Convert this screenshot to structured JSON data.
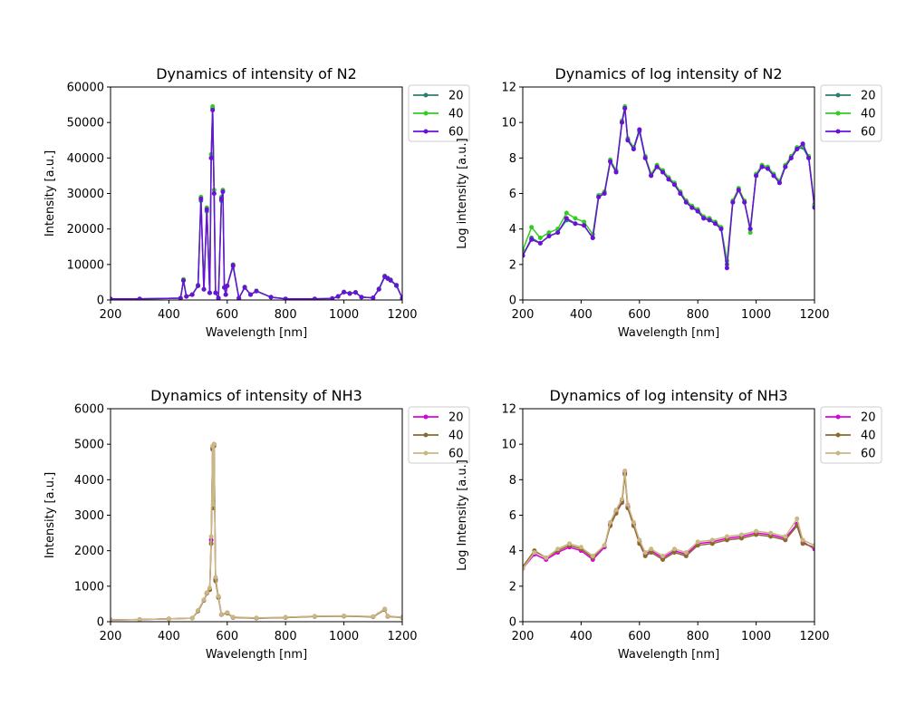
{
  "chart_data": [
    {
      "type": "line",
      "title": "Dynamics of intensity of N2",
      "xlabel": "Wavelength [nm]",
      "ylabel": "Intensity [a.u.]",
      "xlim": [
        200,
        1200
      ],
      "ylim": [
        0,
        60000
      ],
      "xticks": [
        "200",
        "400",
        "600",
        "800",
        "1000",
        "1200"
      ],
      "yticks": [
        "0",
        "10000",
        "20000",
        "30000",
        "40000",
        "50000",
        "60000"
      ],
      "legend_position": "outside-right",
      "marker": "dot",
      "series": [
        {
          "name": "20",
          "color": "#2a7f6e",
          "x": [
            200,
            300,
            440,
            450,
            460,
            480,
            500,
            510,
            520,
            530,
            540,
            545,
            550,
            555,
            560,
            570,
            580,
            585,
            590,
            595,
            600,
            620,
            640,
            660,
            680,
            700,
            750,
            800,
            900,
            960,
            980,
            1000,
            1020,
            1040,
            1060,
            1100,
            1120,
            1140,
            1150,
            1160,
            1180,
            1200
          ],
          "y": [
            300,
            300,
            500,
            5500,
            1000,
            1500,
            4000,
            28000,
            3000,
            25000,
            2000,
            40000,
            54000,
            30000,
            2000,
            500,
            28000,
            30500,
            3500,
            1500,
            4000,
            9500,
            500,
            3500,
            1500,
            2500,
            800,
            300,
            300,
            400,
            1000,
            2200,
            1800,
            2100,
            800,
            600,
            3000,
            6500,
            6000,
            5500,
            4000,
            500
          ]
        },
        {
          "name": "40",
          "color": "#33cc22",
          "x": [
            200,
            300,
            440,
            450,
            460,
            480,
            500,
            510,
            520,
            530,
            540,
            545,
            550,
            555,
            560,
            570,
            580,
            585,
            590,
            595,
            600,
            620,
            640,
            660,
            680,
            700,
            750,
            800,
            900,
            960,
            980,
            1000,
            1020,
            1040,
            1060,
            1100,
            1120,
            1140,
            1150,
            1160,
            1180,
            1200
          ],
          "y": [
            300,
            300,
            500,
            5800,
            1000,
            1500,
            4200,
            29000,
            3000,
            26000,
            2000,
            41000,
            54500,
            31000,
            2000,
            500,
            29000,
            31000,
            3500,
            1500,
            4000,
            10000,
            500,
            3700,
            1500,
            2600,
            800,
            300,
            300,
            400,
            1000,
            2300,
            1900,
            2200,
            800,
            600,
            3200,
            6800,
            6200,
            5700,
            4200,
            500
          ]
        },
        {
          "name": "60",
          "color": "#6a0fdc",
          "x": [
            200,
            300,
            440,
            450,
            460,
            480,
            500,
            510,
            520,
            530,
            540,
            545,
            550,
            555,
            560,
            570,
            580,
            585,
            590,
            595,
            600,
            620,
            640,
            660,
            680,
            700,
            750,
            800,
            900,
            960,
            980,
            1000,
            1020,
            1040,
            1060,
            1100,
            1120,
            1140,
            1150,
            1160,
            1180,
            1200
          ],
          "y": [
            300,
            300,
            500,
            5500,
            1000,
            1500,
            4000,
            28500,
            3000,
            25500,
            2000,
            40000,
            53500,
            30000,
            2000,
            500,
            28500,
            30500,
            3500,
            1500,
            4000,
            9800,
            500,
            3500,
            1500,
            2500,
            800,
            300,
            300,
            400,
            1000,
            2200,
            1800,
            2100,
            800,
            600,
            3000,
            6600,
            6100,
            5600,
            4100,
            500
          ]
        }
      ]
    },
    {
      "type": "line",
      "title": "Dynamics of log intensity of N2",
      "xlabel": "Wavelength [nm]",
      "ylabel": "Log intensity [a.u.]",
      "xlim": [
        200,
        1200
      ],
      "ylim": [
        0,
        12
      ],
      "xticks": [
        "200",
        "400",
        "600",
        "800",
        "1000",
        "1200"
      ],
      "yticks": [
        "0",
        "2",
        "4",
        "6",
        "8",
        "10",
        "12"
      ],
      "legend_position": "outside-right",
      "marker": "dot",
      "series": [
        {
          "name": "20",
          "color": "#2a7f6e",
          "x": [
            200,
            230,
            260,
            290,
            320,
            350,
            380,
            410,
            440,
            460,
            480,
            500,
            520,
            540,
            550,
            560,
            580,
            600,
            620,
            640,
            660,
            680,
            700,
            720,
            740,
            760,
            780,
            800,
            820,
            840,
            860,
            880,
            900,
            920,
            940,
            960,
            980,
            1000,
            1020,
            1040,
            1060,
            1080,
            1100,
            1120,
            1140,
            1160,
            1180,
            1200
          ],
          "y": [
            2.5,
            3.5,
            3.2,
            3.6,
            3.8,
            4.5,
            4.3,
            4.2,
            3.5,
            5.8,
            6.0,
            7.8,
            7.2,
            10.0,
            10.8,
            9.0,
            8.5,
            9.5,
            8.0,
            7.0,
            7.5,
            7.2,
            6.8,
            6.5,
            6.0,
            5.5,
            5.2,
            5.0,
            4.6,
            4.5,
            4.3,
            4.0,
            2.0,
            5.5,
            6.2,
            5.5,
            4.0,
            7.0,
            7.5,
            7.4,
            7.0,
            6.6,
            7.5,
            8.0,
            8.5,
            8.6,
            8.0,
            5.3
          ]
        },
        {
          "name": "40",
          "color": "#33cc22",
          "x": [
            200,
            230,
            260,
            290,
            320,
            350,
            380,
            410,
            440,
            460,
            480,
            500,
            520,
            540,
            550,
            560,
            580,
            600,
            620,
            640,
            660,
            680,
            700,
            720,
            740,
            760,
            780,
            800,
            820,
            840,
            860,
            880,
            900,
            920,
            940,
            960,
            980,
            1000,
            1020,
            1040,
            1060,
            1080,
            1100,
            1120,
            1140,
            1160,
            1180,
            1200
          ],
          "y": [
            2.8,
            4.1,
            3.5,
            3.8,
            4.0,
            4.9,
            4.6,
            4.4,
            3.7,
            5.9,
            6.1,
            7.9,
            7.3,
            10.1,
            10.9,
            9.1,
            8.6,
            9.6,
            8.1,
            7.1,
            7.6,
            7.3,
            6.9,
            6.6,
            6.1,
            5.6,
            5.3,
            5.1,
            4.7,
            4.6,
            4.4,
            4.1,
            2.2,
            5.6,
            6.3,
            5.6,
            3.8,
            7.1,
            7.6,
            7.5,
            7.1,
            6.7,
            7.6,
            8.1,
            8.6,
            8.7,
            8.1,
            5.4
          ]
        },
        {
          "name": "60",
          "color": "#6a0fdc",
          "x": [
            200,
            230,
            260,
            290,
            320,
            350,
            380,
            410,
            440,
            460,
            480,
            500,
            520,
            540,
            550,
            560,
            580,
            600,
            620,
            640,
            660,
            680,
            700,
            720,
            740,
            760,
            780,
            800,
            820,
            840,
            860,
            880,
            900,
            920,
            940,
            960,
            980,
            1000,
            1020,
            1040,
            1060,
            1080,
            1100,
            1120,
            1140,
            1160,
            1180,
            1200
          ],
          "y": [
            2.5,
            3.4,
            3.2,
            3.6,
            3.8,
            4.6,
            4.3,
            4.2,
            3.5,
            5.8,
            6.0,
            7.8,
            7.2,
            10.0,
            10.8,
            9.0,
            8.5,
            9.6,
            8.0,
            7.0,
            7.5,
            7.2,
            6.8,
            6.5,
            6.0,
            5.5,
            5.2,
            5.0,
            4.6,
            4.5,
            4.3,
            4.0,
            1.8,
            5.5,
            6.2,
            5.5,
            4.0,
            7.0,
            7.5,
            7.4,
            7.0,
            6.6,
            7.5,
            8.0,
            8.5,
            8.8,
            8.0,
            5.2
          ]
        }
      ]
    },
    {
      "type": "line",
      "title": "Dynamics of intensity of NH3",
      "xlabel": "Wavelength [nm]",
      "ylabel": "Intensity [a.u.]",
      "xlim": [
        200,
        1200
      ],
      "ylim": [
        0,
        6000
      ],
      "xticks": [
        "200",
        "400",
        "600",
        "800",
        "1000",
        "1200"
      ],
      "yticks": [
        "0",
        "1000",
        "2000",
        "3000",
        "4000",
        "5000",
        "6000"
      ],
      "legend_position": "outside-right",
      "marker": "dot",
      "series": [
        {
          "name": "20",
          "color": "#dd00dd",
          "x": [
            200,
            300,
            400,
            480,
            500,
            520,
            530,
            540,
            545,
            550,
            552,
            555,
            560,
            570,
            580,
            600,
            620,
            700,
            800,
            900,
            1000,
            1100,
            1140,
            1150,
            1200
          ],
          "y": [
            50,
            60,
            80,
            100,
            300,
            600,
            800,
            900,
            2300,
            4900,
            3400,
            5000,
            1200,
            700,
            200,
            250,
            120,
            100,
            120,
            150,
            160,
            140,
            350,
            150,
            120
          ]
        },
        {
          "name": "40",
          "color": "#8b6a2e",
          "x": [
            200,
            300,
            400,
            480,
            500,
            520,
            530,
            540,
            545,
            550,
            552,
            555,
            560,
            570,
            580,
            600,
            620,
            700,
            800,
            900,
            1000,
            1100,
            1140,
            1150,
            1200
          ],
          "y": [
            50,
            60,
            80,
            100,
            300,
            600,
            800,
            900,
            2200,
            4850,
            3200,
            4950,
            1150,
            680,
            200,
            240,
            120,
            100,
            115,
            145,
            155,
            135,
            340,
            150,
            115
          ]
        },
        {
          "name": "60",
          "color": "#c8b882",
          "x": [
            200,
            300,
            400,
            480,
            500,
            520,
            530,
            540,
            545,
            550,
            552,
            555,
            560,
            570,
            580,
            600,
            620,
            700,
            800,
            900,
            1000,
            1100,
            1140,
            1150,
            1200
          ],
          "y": [
            50,
            60,
            80,
            100,
            320,
            620,
            820,
            950,
            2400,
            4950,
            3300,
            5000,
            1250,
            720,
            210,
            260,
            130,
            110,
            125,
            155,
            165,
            145,
            360,
            160,
            125
          ]
        }
      ]
    },
    {
      "type": "line",
      "title": "Dynamics of log intensity of NH3",
      "xlabel": "Wavelength [nm]",
      "ylabel": "Log Intensity [a.u.]",
      "xlim": [
        200,
        1200
      ],
      "ylim": [
        0,
        12
      ],
      "xticks": [
        "200",
        "400",
        "600",
        "800",
        "1000",
        "1200"
      ],
      "yticks": [
        "0",
        "2",
        "4",
        "6",
        "8",
        "10",
        "12"
      ],
      "legend_position": "outside-right",
      "marker": "dot",
      "series": [
        {
          "name": "20",
          "color": "#dd00dd",
          "x": [
            200,
            240,
            280,
            320,
            360,
            400,
            440,
            480,
            500,
            520,
            540,
            550,
            560,
            580,
            600,
            620,
            640,
            680,
            720,
            760,
            800,
            850,
            900,
            950,
            1000,
            1050,
            1100,
            1140,
            1160,
            1200
          ],
          "y": [
            3.0,
            3.8,
            3.5,
            3.9,
            4.2,
            4.0,
            3.5,
            4.2,
            5.5,
            6.2,
            6.8,
            8.4,
            6.5,
            5.5,
            4.5,
            3.8,
            4.0,
            3.6,
            4.0,
            3.8,
            4.4,
            4.5,
            4.7,
            4.8,
            5.0,
            4.9,
            4.7,
            5.5,
            4.5,
            4.1
          ]
        },
        {
          "name": "40",
          "color": "#8b6a2e",
          "x": [
            200,
            240,
            280,
            320,
            360,
            400,
            440,
            480,
            500,
            520,
            540,
            550,
            560,
            580,
            600,
            620,
            640,
            680,
            720,
            760,
            800,
            850,
            900,
            950,
            1000,
            1050,
            1100,
            1140,
            1160,
            1200
          ],
          "y": [
            3.1,
            4.0,
            3.6,
            4.0,
            4.3,
            4.1,
            3.6,
            4.3,
            5.4,
            6.1,
            6.7,
            8.3,
            6.4,
            5.4,
            4.4,
            3.7,
            3.9,
            3.5,
            3.9,
            3.7,
            4.3,
            4.4,
            4.6,
            4.7,
            4.9,
            4.8,
            4.6,
            5.4,
            4.4,
            4.2
          ]
        },
        {
          "name": "60",
          "color": "#c8b882",
          "x": [
            200,
            240,
            280,
            320,
            360,
            400,
            440,
            480,
            500,
            520,
            540,
            550,
            560,
            580,
            600,
            620,
            640,
            680,
            720,
            760,
            800,
            850,
            900,
            950,
            1000,
            1050,
            1100,
            1140,
            1160,
            1200
          ],
          "y": [
            3.0,
            3.9,
            3.6,
            4.1,
            4.4,
            4.2,
            3.7,
            4.3,
            5.6,
            6.3,
            6.9,
            8.5,
            6.6,
            5.6,
            4.6,
            3.9,
            4.1,
            3.7,
            4.1,
            3.9,
            4.5,
            4.6,
            4.8,
            4.9,
            5.1,
            5.0,
            4.8,
            5.8,
            4.6,
            4.3
          ]
        }
      ]
    }
  ]
}
